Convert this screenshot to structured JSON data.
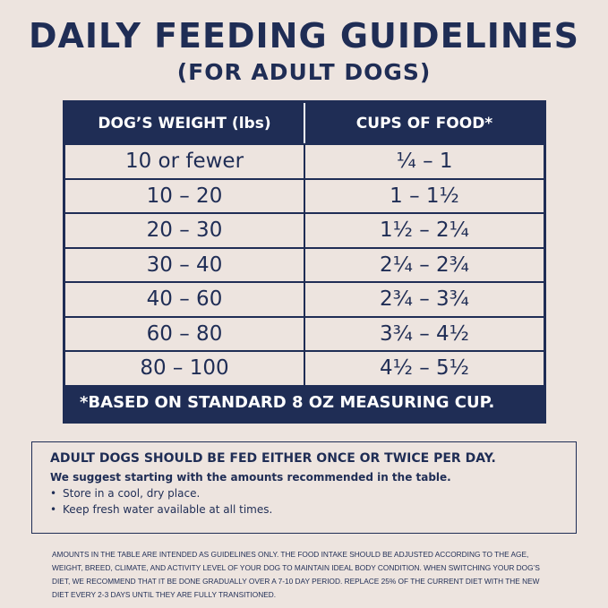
{
  "header": {
    "title": "DAILY FEEDING GUIDELINES",
    "subtitle": "(FOR ADULT DOGS)"
  },
  "table": {
    "header": [
      "DOG’S WEIGHT (lbs)",
      "CUPS OF FOOD*"
    ],
    "rows": [
      [
        "10 or fewer",
        "¼ – 1"
      ],
      [
        "10 – 20",
        "1 – 1½"
      ],
      [
        "20 – 30",
        "1½ – 2¼"
      ],
      [
        "30 – 40",
        "2¼ – 2¾"
      ],
      [
        "40 – 60",
        "2¾ – 3¾"
      ],
      [
        "60 – 80",
        "3¾ – 4½"
      ],
      [
        "80 – 100",
        "4½ – 5½"
      ]
    ],
    "footnote": "*BASED ON STANDARD 8 OZ MEASURING CUP."
  },
  "notes": {
    "heading": "ADULT DOGS SHOULD BE FED EITHER ONCE OR TWICE PER DAY.",
    "intro": "We suggest starting with the amounts recommended in the table.",
    "bullets": [
      "Store in a cool, dry place.",
      "Keep fresh water available at all times."
    ]
  },
  "disclaimer": "AMOUNTS IN THE TABLE ARE INTENDED AS GUIDELINES ONLY. THE FOOD INTAKE SHOULD BE ADJUSTED ACCORDING TO THE AGE, WEIGHT, BREED, CLIMATE, AND ACTIVITY LEVEL OF YOUR DOG TO MAINTAIN IDEAL BODY CONDITION. WHEN SWITCHING YOUR DOG’S DIET, WE RECOMMEND THAT IT BE DONE GRADUALLY OVER A 7-10 DAY PERIOD. REPLACE 25% OF THE CURRENT DIET WITH THE NEW DIET EVERY 2-3 DAYS UNTIL THEY ARE FULLY TRANSITIONED."
}
